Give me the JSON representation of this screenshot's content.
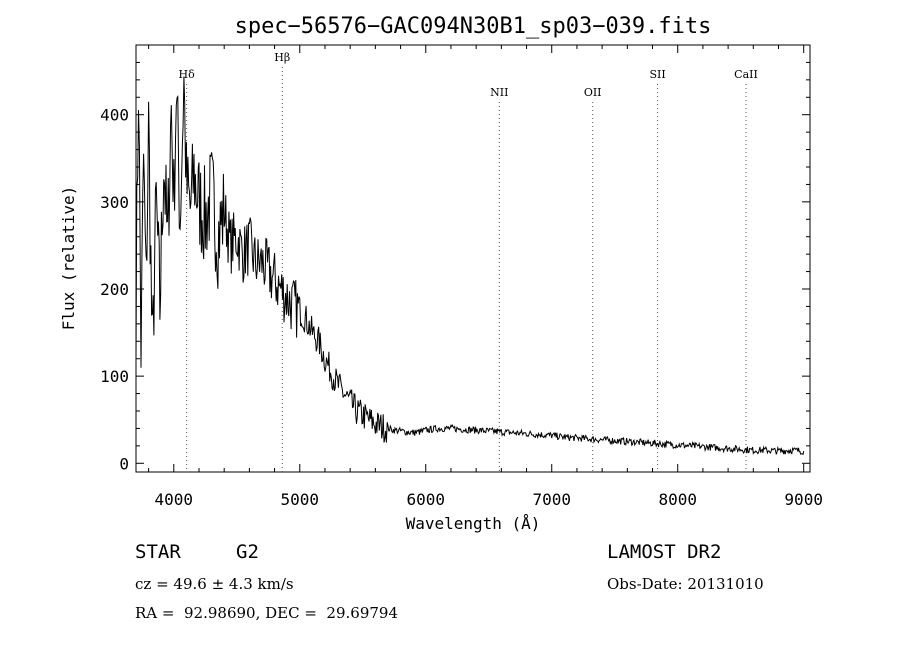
{
  "chart_data": {
    "type": "line",
    "title": "spec−56576−GAC094N30B1_sp03−039.fits",
    "xlabel": "Wavelength (Å)",
    "ylabel": "Flux (relative)",
    "xlim": [
      3700,
      9050
    ],
    "ylim": [
      -10,
      480
    ],
    "x_ticks": [
      4000,
      5000,
      6000,
      7000,
      8000,
      9000
    ],
    "y_ticks": [
      0,
      100,
      200,
      300,
      400
    ],
    "grid": false,
    "series": [
      {
        "x": [
          3700,
          3720,
          3740,
          3760,
          3780,
          3800,
          3830,
          3860,
          3890,
          3920,
          3950,
          3980,
          4000,
          4020,
          4050,
          4080,
          4100,
          4130,
          4160,
          4200,
          4250,
          4300,
          4350,
          4400,
          4450,
          4500,
          4550,
          4600,
          4650,
          4700,
          4750,
          4800,
          4850,
          4900,
          4950,
          5000,
          5050,
          5100,
          5150,
          5200,
          5250,
          5300,
          5350,
          5400,
          5450,
          5500,
          5550,
          5600,
          5650,
          5700,
          5750,
          5800,
          5850,
          5900,
          5950,
          6000,
          6100,
          6200,
          6300,
          6400,
          6500,
          6600,
          6700,
          6800,
          6900,
          7000,
          7100,
          7200,
          7300,
          7400,
          7500,
          7600,
          7700,
          7800,
          7900,
          8000,
          8100,
          8200,
          8300,
          8400,
          8500,
          8600,
          8700,
          8800,
          8900,
          9000
        ],
        "y": [
          180,
          440,
          130,
          350,
          200,
          390,
          120,
          300,
          180,
          350,
          250,
          410,
          300,
          430,
          280,
          440,
          320,
          290,
          330,
          300,
          280,
          310,
          260,
          290,
          250,
          260,
          240,
          250,
          230,
          230,
          220,
          210,
          200,
          190,
          180,
          175,
          165,
          150,
          140,
          120,
          105,
          90,
          80,
          70,
          60,
          55,
          50,
          45,
          42,
          40,
          38,
          37,
          36,
          35,
          36,
          38,
          40,
          40,
          39,
          38,
          37,
          36,
          35,
          34,
          33,
          32,
          30,
          29,
          28,
          27,
          26,
          25,
          24,
          23,
          22,
          21,
          20,
          19,
          18,
          17,
          16,
          15,
          15,
          14,
          15,
          14
        ]
      }
    ],
    "line_markers": [
      {
        "label": "Hδ",
        "x": 4102,
        "label_level": "top"
      },
      {
        "label": "Hβ",
        "x": 4861,
        "label_level": "top"
      },
      {
        "label": "NII",
        "x": 6584,
        "label_level": "low"
      },
      {
        "label": "OII",
        "x": 7325,
        "label_level": "low"
      },
      {
        "label": "SII",
        "x": 7840,
        "label_level": "mid"
      },
      {
        "label": "CaII",
        "x": 8542,
        "label_level": "top"
      }
    ]
  },
  "info": {
    "class": "STAR",
    "subclass": "G2",
    "survey": "LAMOST DR2",
    "cz": "cz = 49.6 ± 4.3 km/s",
    "obs_date": "Obs-Date: 20131010",
    "coords": "RA =  92.98690, DEC =  29.69794"
  }
}
